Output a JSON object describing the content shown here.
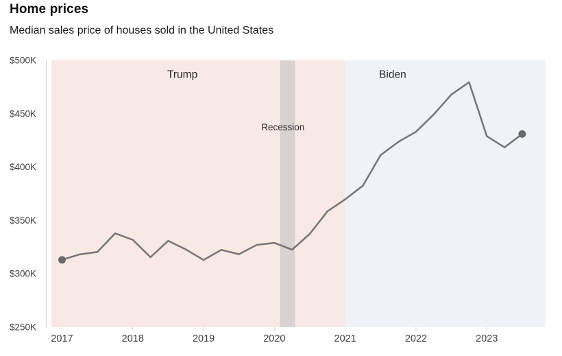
{
  "header": {
    "title": "Home prices",
    "subtitle": "Median sales price of houses sold in the United States"
  },
  "chart_data": {
    "type": "line",
    "title": "Home prices",
    "subtitle": "Median sales price of houses sold in the United States",
    "series_name": "Median sales price of houses sold",
    "x_unit": "year (quarterly)",
    "y_unit": "USD thousands",
    "x": [
      2017.0,
      2017.25,
      2017.5,
      2017.75,
      2018.0,
      2018.25,
      2018.5,
      2018.75,
      2019.0,
      2019.25,
      2019.5,
      2019.75,
      2020.0,
      2020.25,
      2020.5,
      2020.75,
      2021.0,
      2021.25,
      2021.5,
      2021.75,
      2022.0,
      2022.25,
      2022.5,
      2022.75,
      2023.0,
      2023.25,
      2023.5
    ],
    "values": [
      313.1,
      318.2,
      320.5,
      337.9,
      331.8,
      315.6,
      330.9,
      322.8,
      313.0,
      322.5,
      318.4,
      327.1,
      329.0,
      322.6,
      337.5,
      358.7,
      369.8,
      382.6,
      411.2,
      423.6,
      433.1,
      449.3,
      468.0,
      479.5,
      429.0,
      418.5,
      431.0
    ],
    "xlim": [
      2016.85,
      2023.83
    ],
    "ylim": [
      250,
      500
    ],
    "y_ticks": [
      500,
      450,
      400,
      350,
      300,
      250
    ],
    "y_tick_labels": [
      "$500K",
      "$450K",
      "$400K",
      "$350K",
      "$300K",
      "$250K"
    ],
    "x_ticks": [
      2017,
      2018,
      2019,
      2020,
      2021,
      2022,
      2023
    ],
    "x_tick_labels": [
      "2017",
      "2018",
      "2019",
      "2020",
      "2021",
      "2022",
      "2023"
    ],
    "grid": "off",
    "legend": "none",
    "endpoint_dot_indices": [
      0,
      26
    ],
    "annotations": {
      "trump": {
        "label": "Trump",
        "from": 2016.85,
        "to": 2021.0,
        "label_x": 2018.7
      },
      "biden": {
        "label": "Biden",
        "from": 2021.0,
        "to": 2023.83,
        "label_x": 2021.67
      },
      "recession": {
        "label": "Recession",
        "from": 2020.08,
        "to": 2020.29,
        "label_x": 2020.12
      }
    },
    "colors": {
      "line": "#787878",
      "dot": "#6a6a6a",
      "trump_region": "#f9e9e4",
      "biden_region": "#eff3f8",
      "recession_band": "#d8d2d0",
      "axis_text": "#3d3d3d",
      "annotation_text": "#2b2b2b",
      "axis_line": "#d0d0d0"
    }
  }
}
